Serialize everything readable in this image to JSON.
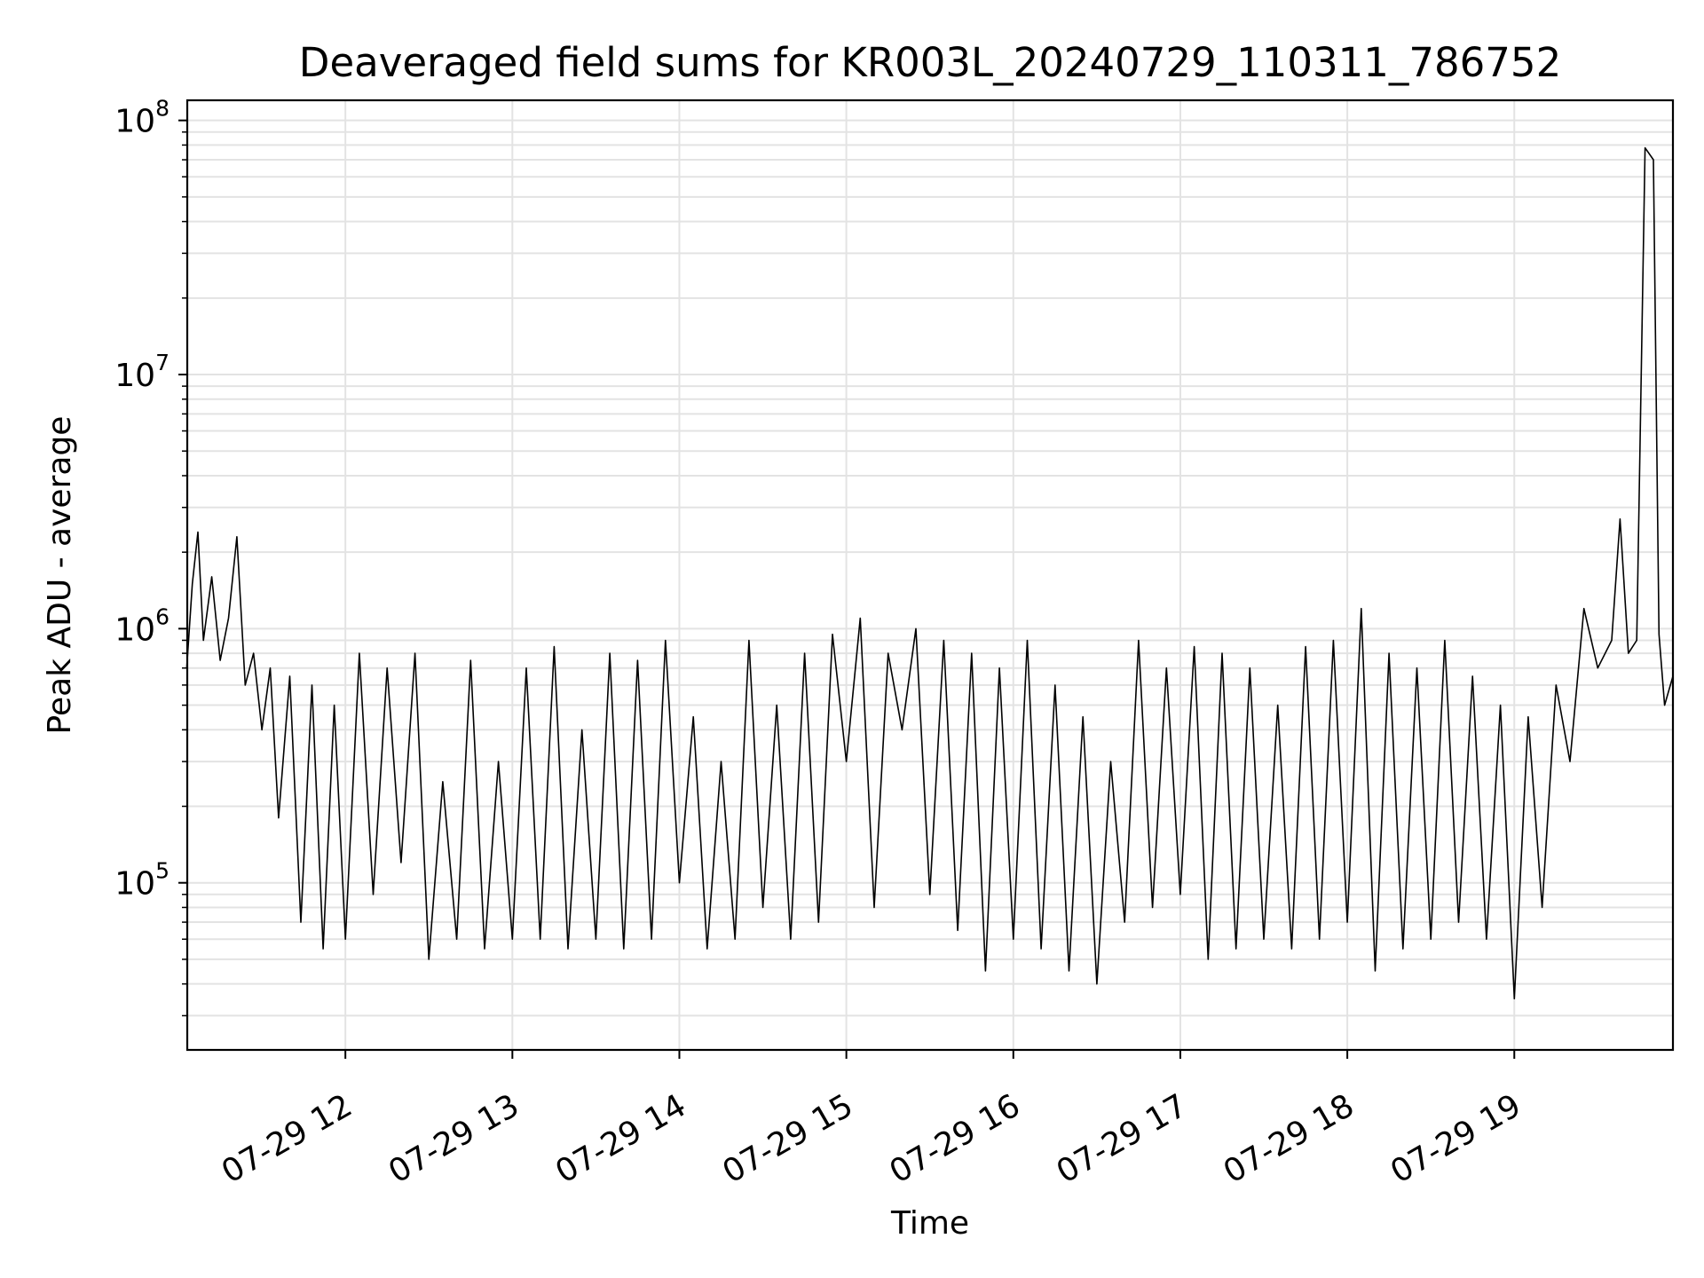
{
  "chart_data": {
    "type": "line",
    "title": "Deaveraged field sums for KR003L_20240729_110311_786752",
    "xlabel": "Time",
    "ylabel": "Peak ADU - average",
    "x_axis": {
      "type": "time",
      "range": [
        "07-29 11:03:11",
        "07-29 19:57:00"
      ],
      "tick_labels": [
        "07-29 12",
        "07-29 13",
        "07-29 14",
        "07-29 15",
        "07-29 16",
        "07-29 17",
        "07-29 18",
        "07-29 19"
      ]
    },
    "y_axis": {
      "scale": "log",
      "ylim": [
        22000,
        120000000
      ],
      "tick_labels": [
        {
          "base": "10",
          "exp": "5"
        },
        {
          "base": "10",
          "exp": "6"
        },
        {
          "base": "10",
          "exp": "7"
        },
        {
          "base": "10",
          "exp": "8"
        }
      ]
    },
    "grid": true,
    "series": [
      {
        "color": "#000000",
        "points": [
          [
            "07-29 11:03",
            700000
          ],
          [
            "07-29 11:05",
            1500000
          ],
          [
            "07-29 11:07",
            2400000
          ],
          [
            "07-29 11:09",
            900000
          ],
          [
            "07-29 11:12",
            1600000
          ],
          [
            "07-29 11:15",
            750000
          ],
          [
            "07-29 11:18",
            1100000
          ],
          [
            "07-29 11:21",
            2300000
          ],
          [
            "07-29 11:24",
            600000
          ],
          [
            "07-29 11:27",
            800000
          ],
          [
            "07-29 11:30",
            400000
          ],
          [
            "07-29 11:33",
            700000
          ],
          [
            "07-29 11:36",
            180000
          ],
          [
            "07-29 11:40",
            650000
          ],
          [
            "07-29 11:44",
            70000
          ],
          [
            "07-29 11:48",
            600000
          ],
          [
            "07-29 11:52",
            55000
          ],
          [
            "07-29 11:56",
            500000
          ],
          [
            "07-29 12:00",
            60000
          ],
          [
            "07-29 12:05",
            800000
          ],
          [
            "07-29 12:10",
            90000
          ],
          [
            "07-29 12:15",
            700000
          ],
          [
            "07-29 12:20",
            120000
          ],
          [
            "07-29 12:25",
            800000
          ],
          [
            "07-29 12:30",
            50000
          ],
          [
            "07-29 12:35",
            250000
          ],
          [
            "07-29 12:40",
            60000
          ],
          [
            "07-29 12:45",
            750000
          ],
          [
            "07-29 12:50",
            55000
          ],
          [
            "07-29 12:55",
            300000
          ],
          [
            "07-29 13:00",
            60000
          ],
          [
            "07-29 13:05",
            700000
          ],
          [
            "07-29 13:10",
            60000
          ],
          [
            "07-29 13:15",
            850000
          ],
          [
            "07-29 13:20",
            55000
          ],
          [
            "07-29 13:25",
            400000
          ],
          [
            "07-29 13:30",
            60000
          ],
          [
            "07-29 13:35",
            800000
          ],
          [
            "07-29 13:40",
            55000
          ],
          [
            "07-29 13:45",
            750000
          ],
          [
            "07-29 13:50",
            60000
          ],
          [
            "07-29 13:55",
            900000
          ],
          [
            "07-29 14:00",
            100000
          ],
          [
            "07-29 14:05",
            450000
          ],
          [
            "07-29 14:10",
            55000
          ],
          [
            "07-29 14:15",
            300000
          ],
          [
            "07-29 14:20",
            60000
          ],
          [
            "07-29 14:25",
            900000
          ],
          [
            "07-29 14:30",
            80000
          ],
          [
            "07-29 14:35",
            500000
          ],
          [
            "07-29 14:40",
            60000
          ],
          [
            "07-29 14:45",
            800000
          ],
          [
            "07-29 14:50",
            70000
          ],
          [
            "07-29 14:55",
            950000
          ],
          [
            "07-29 15:00",
            300000
          ],
          [
            "07-29 15:05",
            1100000
          ],
          [
            "07-29 15:10",
            80000
          ],
          [
            "07-29 15:15",
            800000
          ],
          [
            "07-29 15:20",
            400000
          ],
          [
            "07-29 15:25",
            1000000
          ],
          [
            "07-29 15:30",
            90000
          ],
          [
            "07-29 15:35",
            900000
          ],
          [
            "07-29 15:40",
            65000
          ],
          [
            "07-29 15:45",
            800000
          ],
          [
            "07-29 15:50",
            45000
          ],
          [
            "07-29 15:55",
            700000
          ],
          [
            "07-29 16:00",
            60000
          ],
          [
            "07-29 16:05",
            900000
          ],
          [
            "07-29 16:10",
            55000
          ],
          [
            "07-29 16:15",
            600000
          ],
          [
            "07-29 16:20",
            45000
          ],
          [
            "07-29 16:25",
            450000
          ],
          [
            "07-29 16:30",
            40000
          ],
          [
            "07-29 16:35",
            300000
          ],
          [
            "07-29 16:40",
            70000
          ],
          [
            "07-29 16:45",
            900000
          ],
          [
            "07-29 16:50",
            80000
          ],
          [
            "07-29 16:55",
            700000
          ],
          [
            "07-29 17:00",
            90000
          ],
          [
            "07-29 17:05",
            850000
          ],
          [
            "07-29 17:10",
            50000
          ],
          [
            "07-29 17:15",
            800000
          ],
          [
            "07-29 17:20",
            55000
          ],
          [
            "07-29 17:25",
            700000
          ],
          [
            "07-29 17:30",
            60000
          ],
          [
            "07-29 17:35",
            500000
          ],
          [
            "07-29 17:40",
            55000
          ],
          [
            "07-29 17:45",
            850000
          ],
          [
            "07-29 17:50",
            60000
          ],
          [
            "07-29 17:55",
            900000
          ],
          [
            "07-29 18:00",
            70000
          ],
          [
            "07-29 18:05",
            1200000
          ],
          [
            "07-29 18:10",
            45000
          ],
          [
            "07-29 18:15",
            800000
          ],
          [
            "07-29 18:20",
            55000
          ],
          [
            "07-29 18:25",
            700000
          ],
          [
            "07-29 18:30",
            60000
          ],
          [
            "07-29 18:35",
            900000
          ],
          [
            "07-29 18:40",
            70000
          ],
          [
            "07-29 18:45",
            650000
          ],
          [
            "07-29 18:50",
            60000
          ],
          [
            "07-29 18:55",
            500000
          ],
          [
            "07-29 19:00",
            35000
          ],
          [
            "07-29 19:05",
            450000
          ],
          [
            "07-29 19:10",
            80000
          ],
          [
            "07-29 19:15",
            600000
          ],
          [
            "07-29 19:20",
            300000
          ],
          [
            "07-29 19:25",
            1200000
          ],
          [
            "07-29 19:30",
            700000
          ],
          [
            "07-29 19:35",
            900000
          ],
          [
            "07-29 19:38",
            2700000
          ],
          [
            "07-29 19:41",
            800000
          ],
          [
            "07-29 19:44",
            900000
          ],
          [
            "07-29 19:47",
            78000000
          ],
          [
            "07-29 19:50",
            70000000
          ],
          [
            "07-29 19:52",
            950000
          ],
          [
            "07-29 19:54",
            500000
          ],
          [
            "07-29 19:57",
            650000
          ]
        ]
      }
    ]
  }
}
